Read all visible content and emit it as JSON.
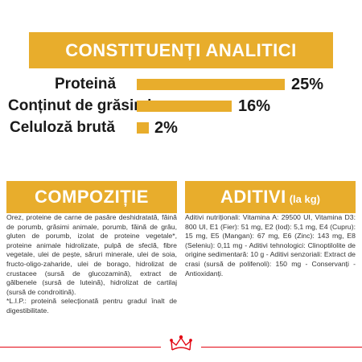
{
  "header": {
    "title": "CONSTITUENȚI ANALITICI"
  },
  "analysis": {
    "rows": [
      {
        "label": "Proteină",
        "percent": "25%",
        "value": 25
      },
      {
        "label": "Conținut de grăsimi",
        "percent": "16%",
        "value": 16
      },
      {
        "label": "Celuloză brută",
        "percent": "2%",
        "value": 2
      }
    ]
  },
  "composition": {
    "title": "COMPOZIȚIE",
    "text": "Orez, proteine de carne de pasăre deshidratată, făină de porumb, grăsimi animale, porumb, făină de grâu, gluten de porumb, izolat de proteine vegetale*, proteine animale hidrolizate, pulpă de sfeclă, fibre vegetale, ulei de pește, săruri minerale, ulei de soia, fructo-oligo-zaharide, ulei de borago, hidrolizat de crustacee (sursă de glucozamină), extract de gălbenele (sursă de luteină), hidrolizat de cartilaj (sursă de condroitină).",
    "note": "*L.I.P.: proteină selecționată pentru gradul înalt de digestibilitate."
  },
  "additives": {
    "title": "ADITIVI",
    "unit": "(la kg)",
    "text": "Aditivi nutriționali: Vitamina A: 29500 UI, Vitamina D3: 800 UI, E1 (Fier): 51 mg, E2 (Iod): 5,1 mg, E4 (Cupru): 15 mg, E5 (Mangan): 67 mg, E6 (Zinc): 143 mg, E8 (Seleniu): 0,11 mg - Aditivi tehnologici: Clinoptilolite de origine sedimentară: 10 g - Aditivi senzoriali: Extract de crasi (sursă de polifenoli): 150 mg - Conservanți - Antioxidanți."
  },
  "colors": {
    "accent": "#e8ad2c",
    "brand": "#e30613"
  },
  "logo": {
    "icon": "crown-icon"
  }
}
